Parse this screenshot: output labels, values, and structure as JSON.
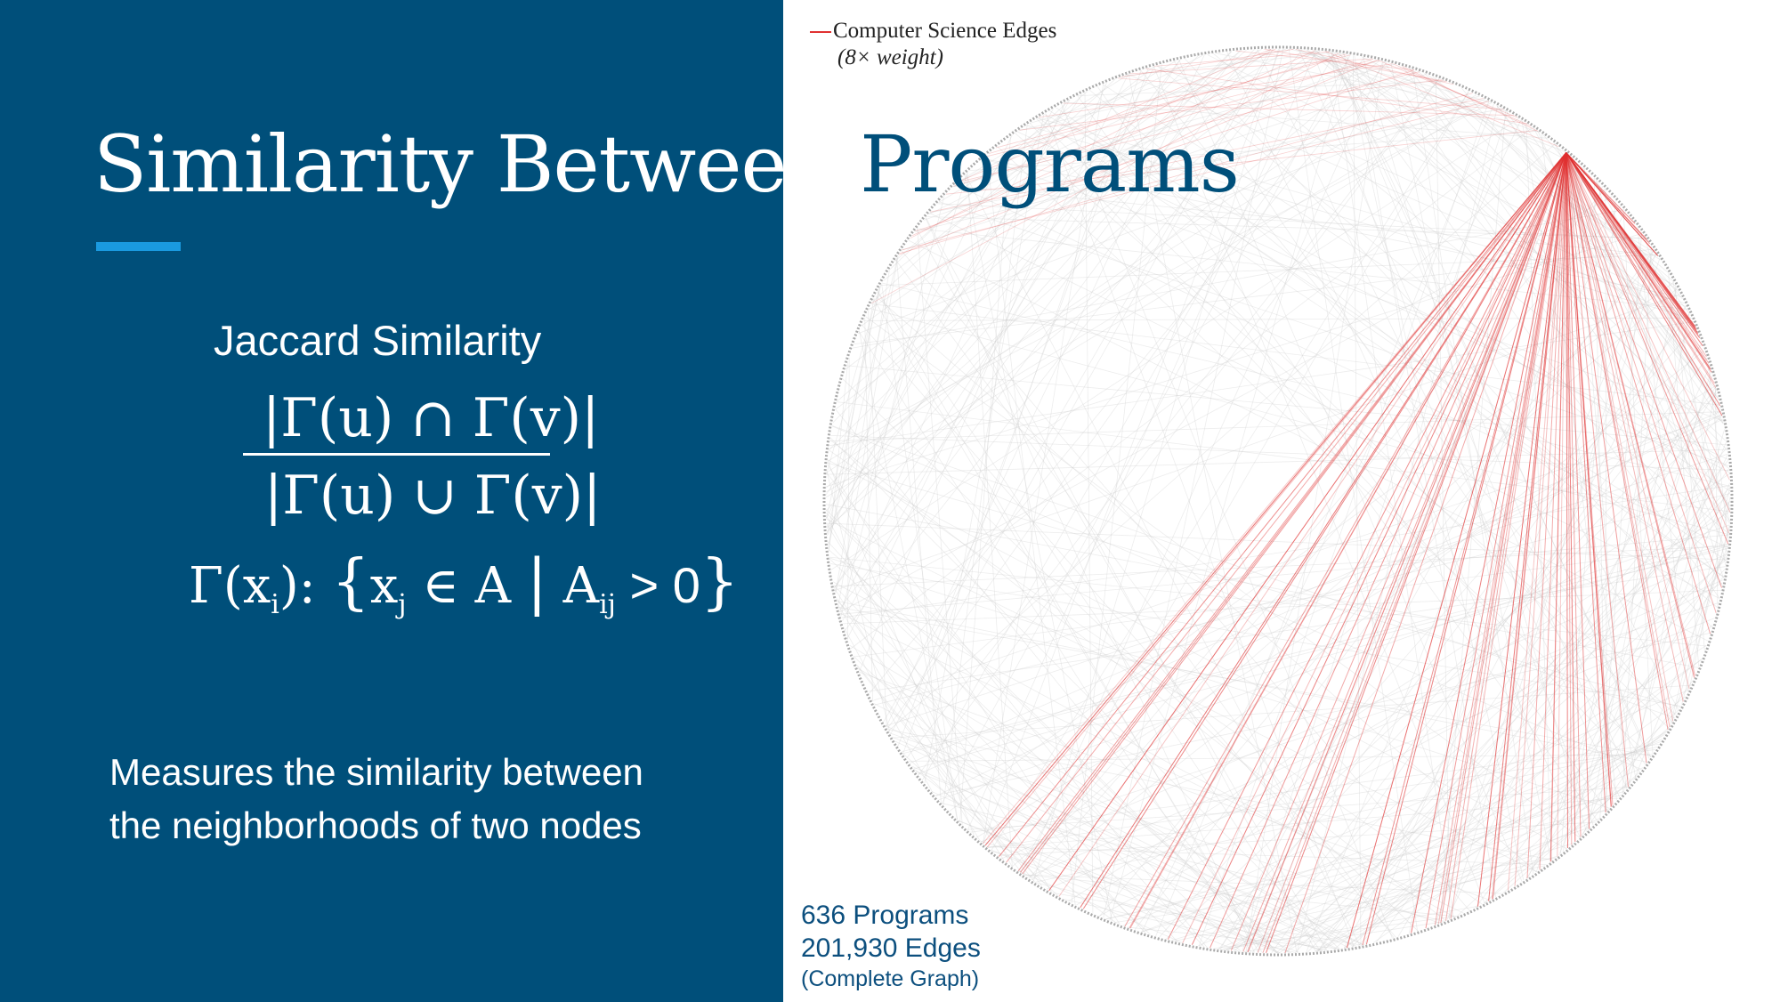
{
  "slide": {
    "title_part1": "Similarity Between ",
    "title_part2": "Programs"
  },
  "formula": {
    "heading": "Jaccard Similarity",
    "numerator": "|Γ(u) ∩ Γ(v)|",
    "denominator": "|Γ(u) ∪ Γ(v)|",
    "neighborhood": {
      "gamma": "Γ(x",
      "sub_i": "i",
      "after_i": "): ",
      "lbrace": "{",
      "x": "x",
      "sub_j": "j",
      "in_a": " ∈ A ",
      "bar": "|",
      "a": " A",
      "sub_ij": "ij",
      "gt": " > 0",
      "rbrace": "}"
    }
  },
  "description": {
    "line1": "Measures the similarity  between",
    "line2": "the neighborhoods of two nodes"
  },
  "graph": {
    "legend_label": "Computer Science Edges",
    "legend_sub": "(8× weight)",
    "stats_programs": "636 Programs",
    "stats_edges": "201,930  Edges",
    "stats_note": "(Complete Graph)",
    "highlight_color": "#e03030",
    "edge_color": "#cccccc"
  }
}
